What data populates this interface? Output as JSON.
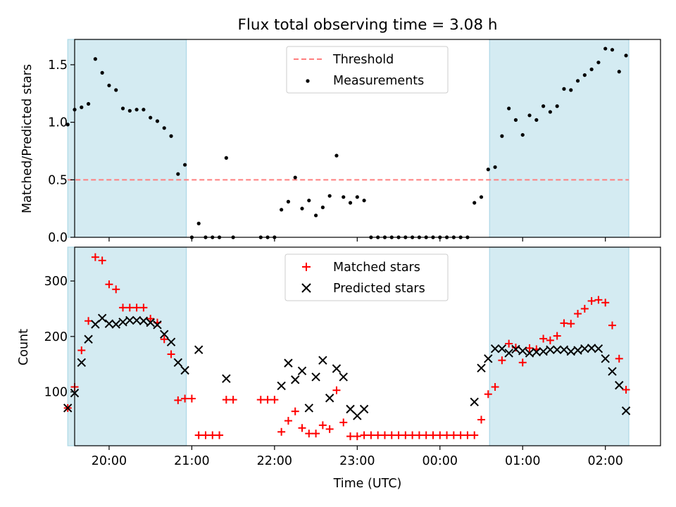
{
  "title": "Flux total observing time = 3.08 h",
  "colors": {
    "shade": "#add8e6",
    "threshold": "#ff7f7f",
    "matched": "#ff0000",
    "predicted": "#000000",
    "measurement": "#000000"
  },
  "chart_data": [
    {
      "type": "scatter",
      "ylabel": "Matched/Predicted stars",
      "xlim": [
        "19:35",
        "02:40"
      ],
      "ylim": [
        0.0,
        1.72
      ],
      "yticks": [
        0.0,
        0.5,
        1.0,
        1.5
      ],
      "yticklabels": [
        "0.0",
        "0.5",
        "1.0",
        "1.5"
      ],
      "xticks": [
        "20:00",
        "21:00",
        "22:00",
        "23:00",
        "00:00",
        "01:00",
        "02:00"
      ],
      "grid": false,
      "legend_location": "upper center",
      "legend": [
        "Threshold",
        "Measurements"
      ],
      "shaded_intervals": [
        [
          "19:30",
          "20:56"
        ],
        [
          "00:36",
          "02:17"
        ]
      ],
      "threshold": 0.5,
      "measurements": [
        [
          "19:30",
          0.98
        ],
        [
          "19:35",
          1.11
        ],
        [
          "19:40",
          1.13
        ],
        [
          "19:45",
          1.16
        ],
        [
          "19:50",
          1.55
        ],
        [
          "19:55",
          1.43
        ],
        [
          "20:00",
          1.32
        ],
        [
          "20:05",
          1.28
        ],
        [
          "20:10",
          1.12
        ],
        [
          "20:15",
          1.1
        ],
        [
          "20:20",
          1.11
        ],
        [
          "20:25",
          1.11
        ],
        [
          "20:30",
          1.04
        ],
        [
          "20:35",
          1.01
        ],
        [
          "20:40",
          0.95
        ],
        [
          "20:45",
          0.88
        ],
        [
          "20:50",
          0.55
        ],
        [
          "20:55",
          0.63
        ],
        [
          "21:00",
          0.0
        ],
        [
          "21:05",
          0.12
        ],
        [
          "21:10",
          0.0
        ],
        [
          "21:15",
          0.0
        ],
        [
          "21:20",
          0.0
        ],
        [
          "21:25",
          0.69
        ],
        [
          "21:30",
          0.0
        ],
        [
          "21:50",
          0.0
        ],
        [
          "21:55",
          0.0
        ],
        [
          "22:00",
          0.0
        ],
        [
          "22:05",
          0.24
        ],
        [
          "22:10",
          0.31
        ],
        [
          "22:15",
          0.52
        ],
        [
          "22:20",
          0.25
        ],
        [
          "22:25",
          0.32
        ],
        [
          "22:30",
          0.19
        ],
        [
          "22:35",
          0.26
        ],
        [
          "22:40",
          0.36
        ],
        [
          "22:45",
          0.71
        ],
        [
          "22:50",
          0.35
        ],
        [
          "22:55",
          0.3
        ],
        [
          "23:00",
          0.35
        ],
        [
          "23:05",
          0.32
        ],
        [
          "23:10",
          0.0
        ],
        [
          "23:15",
          0.0
        ],
        [
          "23:20",
          0.0
        ],
        [
          "23:25",
          0.0
        ],
        [
          "23:30",
          0.0
        ],
        [
          "23:35",
          0.0
        ],
        [
          "23:40",
          0.0
        ],
        [
          "23:45",
          0.0
        ],
        [
          "23:50",
          0.0
        ],
        [
          "23:55",
          0.0
        ],
        [
          "00:00",
          0.0
        ],
        [
          "00:05",
          0.0
        ],
        [
          "00:10",
          0.0
        ],
        [
          "00:15",
          0.0
        ],
        [
          "00:20",
          0.0
        ],
        [
          "00:25",
          0.3
        ],
        [
          "00:30",
          0.35
        ],
        [
          "00:35",
          0.59
        ],
        [
          "00:40",
          0.61
        ],
        [
          "00:45",
          0.88
        ],
        [
          "00:50",
          1.12
        ],
        [
          "00:55",
          1.02
        ],
        [
          "01:00",
          0.89
        ],
        [
          "01:05",
          1.06
        ],
        [
          "01:10",
          1.02
        ],
        [
          "01:15",
          1.14
        ],
        [
          "01:20",
          1.09
        ],
        [
          "01:25",
          1.14
        ],
        [
          "01:30",
          1.29
        ],
        [
          "01:35",
          1.28
        ],
        [
          "01:40",
          1.36
        ],
        [
          "01:45",
          1.41
        ],
        [
          "01:50",
          1.46
        ],
        [
          "01:55",
          1.52
        ],
        [
          "02:00",
          1.64
        ],
        [
          "02:05",
          1.63
        ],
        [
          "02:10",
          1.44
        ],
        [
          "02:15",
          1.58
        ]
      ]
    },
    {
      "type": "scatter",
      "ylabel": "Count",
      "xlabel": "Time (UTC)",
      "xlim": [
        "19:35",
        "02:40"
      ],
      "ylim": [
        3,
        361
      ],
      "yticks": [
        100,
        200,
        300
      ],
      "xticks": [
        "20:00",
        "21:00",
        "22:00",
        "23:00",
        "00:00",
        "01:00",
        "02:00"
      ],
      "grid": false,
      "legend_location": "upper center",
      "legend": [
        "Matched stars",
        "Predicted stars"
      ],
      "shaded_intervals": [
        [
          "19:30",
          "20:56"
        ],
        [
          "00:36",
          "02:17"
        ]
      ],
      "series": [
        {
          "name": "Matched stars",
          "marker": "plus",
          "points": [
            [
              "19:30",
              71
            ],
            [
              "19:35",
              109
            ],
            [
              "19:40",
              175
            ],
            [
              "19:45",
              228
            ],
            [
              "19:50",
              343
            ],
            [
              "19:55",
              337
            ],
            [
              "20:00",
              294
            ],
            [
              "20:05",
              285
            ],
            [
              "20:10",
              252
            ],
            [
              "20:15",
              252
            ],
            [
              "20:20",
              252
            ],
            [
              "20:25",
              252
            ],
            [
              "20:30",
              232
            ],
            [
              "20:35",
              225
            ],
            [
              "20:40",
              195
            ],
            [
              "20:45",
              168
            ],
            [
              "20:50",
              85
            ],
            [
              "20:55",
              88
            ],
            [
              "21:00",
              88
            ],
            [
              "21:05",
              22
            ],
            [
              "21:10",
              22
            ],
            [
              "21:15",
              22
            ],
            [
              "21:20",
              22
            ],
            [
              "21:25",
              86
            ],
            [
              "21:30",
              86
            ],
            [
              "21:50",
              86
            ],
            [
              "21:55",
              86
            ],
            [
              "22:00",
              86
            ],
            [
              "22:05",
              28
            ],
            [
              "22:10",
              48
            ],
            [
              "22:15",
              65
            ],
            [
              "22:20",
              35
            ],
            [
              "22:25",
              25
            ],
            [
              "22:30",
              25
            ],
            [
              "22:35",
              40
            ],
            [
              "22:40",
              33
            ],
            [
              "22:45",
              103
            ],
            [
              "22:50",
              45
            ],
            [
              "22:55",
              20
            ],
            [
              "23:00",
              20
            ],
            [
              "23:05",
              22
            ],
            [
              "23:10",
              22
            ],
            [
              "23:15",
              22
            ],
            [
              "23:20",
              22
            ],
            [
              "23:25",
              22
            ],
            [
              "23:30",
              22
            ],
            [
              "23:35",
              22
            ],
            [
              "23:40",
              22
            ],
            [
              "23:45",
              22
            ],
            [
              "23:50",
              22
            ],
            [
              "23:55",
              22
            ],
            [
              "00:00",
              22
            ],
            [
              "00:05",
              22
            ],
            [
              "00:10",
              22
            ],
            [
              "00:15",
              22
            ],
            [
              "00:20",
              22
            ],
            [
              "00:25",
              22
            ],
            [
              "00:30",
              50
            ],
            [
              "00:35",
              96
            ],
            [
              "00:40",
              109
            ],
            [
              "00:45",
              157
            ],
            [
              "00:50",
              187
            ],
            [
              "00:55",
              180
            ],
            [
              "01:00",
              153
            ],
            [
              "01:05",
              179
            ],
            [
              "01:10",
              177
            ],
            [
              "01:15",
              196
            ],
            [
              "01:20",
              193
            ],
            [
              "01:25",
              201
            ],
            [
              "01:30",
              224
            ],
            [
              "01:35",
              223
            ],
            [
              "01:40",
              241
            ],
            [
              "01:45",
              250
            ],
            [
              "01:50",
              264
            ],
            [
              "01:55",
              266
            ],
            [
              "02:00",
              261
            ],
            [
              "02:05",
              220
            ],
            [
              "02:10",
              160
            ],
            [
              "02:15",
              104
            ]
          ]
        },
        {
          "name": "Predicted stars",
          "marker": "x",
          "points": [
            [
              "19:30",
              71
            ],
            [
              "19:35",
              98
            ],
            [
              "19:40",
              153
            ],
            [
              "19:45",
              195
            ],
            [
              "19:50",
              222
            ],
            [
              "19:55",
              233
            ],
            [
              "20:00",
              223
            ],
            [
              "20:05",
              222
            ],
            [
              "20:10",
              226
            ],
            [
              "20:15",
              229
            ],
            [
              "20:20",
              229
            ],
            [
              "20:25",
              228
            ],
            [
              "20:30",
              225
            ],
            [
              "20:35",
              221
            ],
            [
              "20:40",
              204
            ],
            [
              "20:45",
              190
            ],
            [
              "20:50",
              153
            ],
            [
              "20:55",
              139
            ],
            [
              "21:05",
              176
            ],
            [
              "21:25",
              124
            ],
            [
              "22:05",
              111
            ],
            [
              "22:10",
              152
            ],
            [
              "22:15",
              122
            ],
            [
              "22:20",
              138
            ],
            [
              "22:25",
              71
            ],
            [
              "22:30",
              127
            ],
            [
              "22:35",
              157
            ],
            [
              "22:40",
              89
            ],
            [
              "22:45",
              142
            ],
            [
              "22:50",
              127
            ],
            [
              "22:55",
              69
            ],
            [
              "23:00",
              57
            ],
            [
              "23:05",
              69
            ],
            [
              "00:25",
              82
            ],
            [
              "00:30",
              143
            ],
            [
              "00:35",
              160
            ],
            [
              "00:40",
              178
            ],
            [
              "00:45",
              178
            ],
            [
              "00:50",
              170
            ],
            [
              "00:55",
              177
            ],
            [
              "01:00",
              174
            ],
            [
              "01:05",
              170
            ],
            [
              "01:10",
              172
            ],
            [
              "01:15",
              173
            ],
            [
              "01:20",
              176
            ],
            [
              "01:25",
              176
            ],
            [
              "01:30",
              176
            ],
            [
              "01:35",
              173
            ],
            [
              "01:40",
              175
            ],
            [
              "01:45",
              178
            ],
            [
              "01:50",
              179
            ],
            [
              "01:55",
              178
            ],
            [
              "02:00",
              160
            ],
            [
              "02:05",
              137
            ],
            [
              "02:10",
              112
            ],
            [
              "02:15",
              66
            ]
          ]
        }
      ]
    }
  ]
}
